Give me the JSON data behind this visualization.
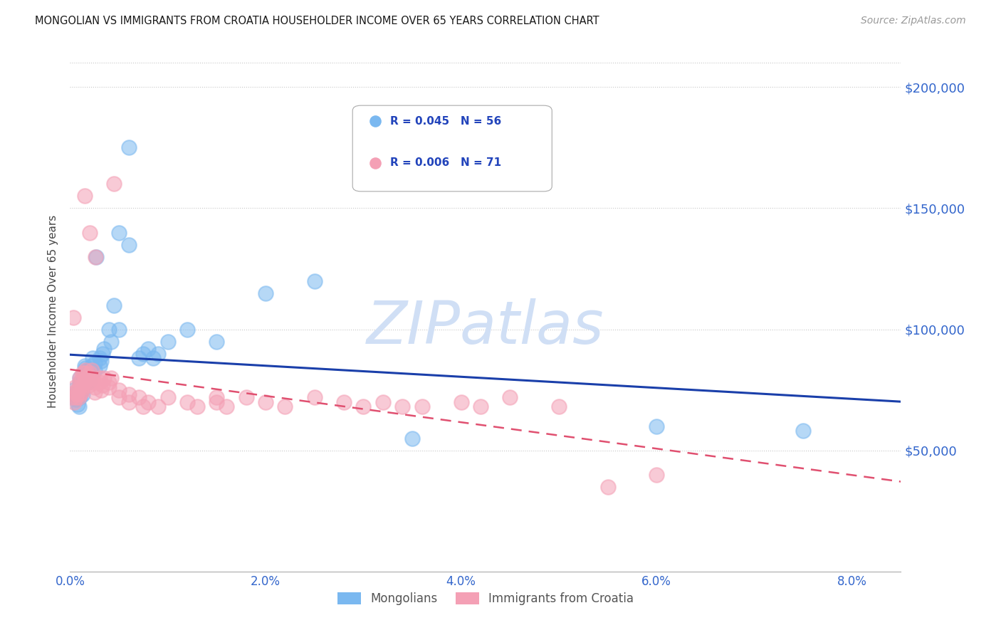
{
  "title": "MONGOLIAN VS IMMIGRANTS FROM CROATIA HOUSEHOLDER INCOME OVER 65 YEARS CORRELATION CHART",
  "source": "Source: ZipAtlas.com",
  "ylabel": "Householder Income Over 65 years",
  "ytick_labels": [
    "$50,000",
    "$100,000",
    "$150,000",
    "$200,000"
  ],
  "ytick_values": [
    50000,
    100000,
    150000,
    200000
  ],
  "xlim": [
    0.0,
    0.085
  ],
  "ylim": [
    0,
    215000
  ],
  "mongolian_R": 0.045,
  "mongolian_N": 56,
  "croatia_R": 0.006,
  "croatia_N": 71,
  "blue_color": "#7ab8f0",
  "pink_color": "#f4a0b5",
  "trend_blue": "#1a3faa",
  "trend_pink": "#e05070",
  "watermark": "ZIPatlas",
  "watermark_color": "#d0dff5",
  "legend_label1": "Mongolians",
  "legend_label2": "Immigrants from Croatia",
  "mongolian_x": [
    0.0003,
    0.0005,
    0.0006,
    0.0007,
    0.0008,
    0.0009,
    0.001,
    0.001,
    0.001,
    0.001,
    0.001,
    0.0012,
    0.0012,
    0.0013,
    0.0014,
    0.0015,
    0.0015,
    0.0016,
    0.0016,
    0.0017,
    0.0018,
    0.0018,
    0.0019,
    0.002,
    0.002,
    0.002,
    0.0022,
    0.0023,
    0.0025,
    0.0025,
    0.0027,
    0.003,
    0.003,
    0.0032,
    0.0033,
    0.0035,
    0.004,
    0.0042,
    0.0045,
    0.005,
    0.005,
    0.006,
    0.006,
    0.007,
    0.0075,
    0.008,
    0.0085,
    0.009,
    0.01,
    0.012,
    0.015,
    0.02,
    0.025,
    0.035,
    0.06,
    0.075
  ],
  "mongolian_y": [
    75000,
    73000,
    71000,
    72000,
    69000,
    68000,
    74000,
    76000,
    78000,
    72000,
    80000,
    75000,
    77000,
    73000,
    80000,
    82000,
    85000,
    80000,
    84000,
    83000,
    78000,
    80000,
    82000,
    79000,
    81000,
    83000,
    85000,
    88000,
    83000,
    86000,
    130000,
    85000,
    88000,
    87000,
    90000,
    92000,
    100000,
    95000,
    110000,
    100000,
    140000,
    175000,
    135000,
    88000,
    90000,
    92000,
    88000,
    90000,
    95000,
    100000,
    95000,
    115000,
    120000,
    55000,
    60000,
    58000
  ],
  "croatia_x": [
    0.0002,
    0.0003,
    0.0004,
    0.0005,
    0.0005,
    0.0006,
    0.0007,
    0.0008,
    0.0009,
    0.001,
    0.001,
    0.001,
    0.001,
    0.0011,
    0.0012,
    0.0013,
    0.0013,
    0.0014,
    0.0015,
    0.0015,
    0.0016,
    0.0017,
    0.0018,
    0.0019,
    0.002,
    0.002,
    0.002,
    0.0022,
    0.0023,
    0.0024,
    0.0025,
    0.0025,
    0.0026,
    0.003,
    0.003,
    0.0032,
    0.0033,
    0.0035,
    0.004,
    0.004,
    0.0042,
    0.0045,
    0.005,
    0.005,
    0.006,
    0.006,
    0.007,
    0.0075,
    0.008,
    0.009,
    0.01,
    0.012,
    0.013,
    0.015,
    0.015,
    0.016,
    0.018,
    0.02,
    0.022,
    0.025,
    0.028,
    0.03,
    0.032,
    0.034,
    0.036,
    0.04,
    0.042,
    0.045,
    0.05,
    0.055,
    0.06
  ],
  "croatia_y": [
    72000,
    105000,
    70000,
    74000,
    76000,
    72000,
    73000,
    75000,
    72000,
    76000,
    78000,
    73000,
    80000,
    74000,
    80000,
    82000,
    76000,
    78000,
    82000,
    155000,
    83000,
    80000,
    78000,
    77000,
    80000,
    82000,
    140000,
    83000,
    80000,
    78000,
    76000,
    74000,
    130000,
    80000,
    78000,
    75000,
    77000,
    80000,
    76000,
    78000,
    80000,
    160000,
    75000,
    72000,
    73000,
    70000,
    72000,
    68000,
    70000,
    68000,
    72000,
    70000,
    68000,
    70000,
    72000,
    68000,
    72000,
    70000,
    68000,
    72000,
    70000,
    68000,
    70000,
    68000,
    68000,
    70000,
    68000,
    72000,
    68000,
    35000,
    40000
  ]
}
